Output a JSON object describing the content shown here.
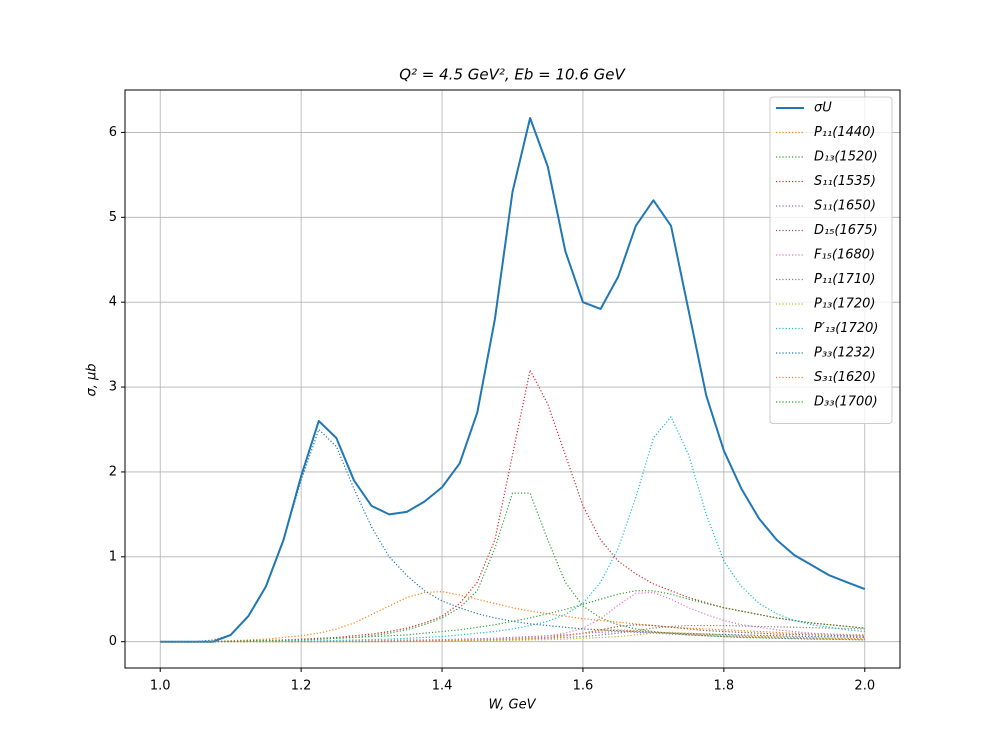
{
  "chart_data": {
    "type": "line",
    "title": "Q² = 4.5 GeV²,  Eb = 10.6 GeV",
    "xlabel": "W, GeV",
    "ylabel": "σ, μb",
    "xlim": [
      0.95,
      2.05
    ],
    "ylim": [
      -0.31,
      6.5
    ],
    "xticks": [
      {
        "value": 1,
        "label": "1.0"
      },
      1.2,
      1.4,
      1.6,
      1.8,
      {
        "value": 2,
        "label": "2.0"
      }
    ],
    "yticks": [
      0,
      1,
      2,
      3,
      4,
      5,
      6
    ],
    "grid": true,
    "legend": "upper right",
    "x": [
      1.0,
      1.025,
      1.05,
      1.075,
      1.1,
      1.125,
      1.15,
      1.175,
      1.2,
      1.225,
      1.25,
      1.275,
      1.3,
      1.325,
      1.35,
      1.375,
      1.4,
      1.425,
      1.45,
      1.475,
      1.5,
      1.525,
      1.55,
      1.575,
      1.6,
      1.625,
      1.65,
      1.675,
      1.7,
      1.725,
      1.75,
      1.775,
      1.8,
      1.825,
      1.85,
      1.875,
      1.9,
      1.925,
      1.95,
      1.975,
      2.0
    ],
    "series": [
      {
        "name": "σU",
        "color": "#1f77b4",
        "linestyle": "solid",
        "values": [
          0,
          0,
          0,
          0,
          0.08,
          0.3,
          0.65,
          1.2,
          1.95,
          2.6,
          2.4,
          1.9,
          1.6,
          1.5,
          1.53,
          1.65,
          1.82,
          2.1,
          2.7,
          3.8,
          5.3,
          6.17,
          5.6,
          4.6,
          4.0,
          3.92,
          4.3,
          4.9,
          5.2,
          4.9,
          3.9,
          2.9,
          2.25,
          1.8,
          1.45,
          1.2,
          1.02,
          0.9,
          0.78,
          0.7,
          0.62
        ]
      },
      {
        "name": "P₁₁(1440)",
        "color": "#ff7f0e",
        "linestyle": "dotted",
        "values": [
          0,
          0,
          0,
          0.005,
          0.01,
          0.02,
          0.03,
          0.05,
          0.07,
          0.1,
          0.15,
          0.22,
          0.32,
          0.42,
          0.52,
          0.58,
          0.59,
          0.55,
          0.5,
          0.45,
          0.4,
          0.36,
          0.33,
          0.3,
          0.27,
          0.25,
          0.23,
          0.21,
          0.19,
          0.17,
          0.16,
          0.15,
          0.14,
          0.13,
          0.12,
          0.11,
          0.1,
          0.095,
          0.09,
          0.085,
          0.08
        ]
      },
      {
        "name": "D₁₃(1520)",
        "color": "#2ca02c",
        "linestyle": "dotted",
        "values": [
          0,
          0,
          0,
          0,
          0.005,
          0.01,
          0.01,
          0.015,
          0.02,
          0.03,
          0.04,
          0.05,
          0.07,
          0.1,
          0.14,
          0.2,
          0.28,
          0.4,
          0.6,
          1.1,
          1.75,
          1.75,
          1.2,
          0.7,
          0.42,
          0.28,
          0.2,
          0.15,
          0.12,
          0.1,
          0.08,
          0.07,
          0.06,
          0.05,
          0.045,
          0.04,
          0.035,
          0.03,
          0.03,
          0.025,
          0.02
        ]
      },
      {
        "name": "S₁₁(1535)",
        "color": "#d62728",
        "linestyle": "dotted",
        "values": [
          0,
          0,
          0,
          0,
          0.005,
          0.01,
          0.015,
          0.02,
          0.03,
          0.04,
          0.05,
          0.07,
          0.09,
          0.12,
          0.16,
          0.22,
          0.3,
          0.45,
          0.7,
          1.2,
          2.2,
          3.2,
          2.8,
          2.2,
          1.6,
          1.2,
          0.95,
          0.8,
          0.68,
          0.6,
          0.52,
          0.46,
          0.4,
          0.36,
          0.32,
          0.28,
          0.25,
          0.22,
          0.2,
          0.18,
          0.16
        ]
      },
      {
        "name": "S₁₁(1650)",
        "color": "#9467bd",
        "linestyle": "dotted",
        "values": [
          0,
          0,
          0,
          0,
          0,
          0,
          0,
          0,
          0,
          0.005,
          0.005,
          0.01,
          0.01,
          0.015,
          0.02,
          0.02,
          0.025,
          0.03,
          0.035,
          0.04,
          0.05,
          0.06,
          0.07,
          0.08,
          0.1,
          0.11,
          0.12,
          0.11,
          0.1,
          0.09,
          0.08,
          0.07,
          0.06,
          0.055,
          0.05,
          0.045,
          0.04,
          0.035,
          0.03,
          0.03,
          0.025
        ]
      },
      {
        "name": "D₁₅(1675)",
        "color": "#8c564b",
        "linestyle": "dotted",
        "values": [
          0,
          0,
          0,
          0,
          0,
          0,
          0,
          0,
          0,
          0,
          0,
          0,
          0,
          0.005,
          0.005,
          0.01,
          0.01,
          0.015,
          0.02,
          0.025,
          0.03,
          0.04,
          0.05,
          0.07,
          0.1,
          0.14,
          0.18,
          0.2,
          0.19,
          0.17,
          0.15,
          0.13,
          0.12,
          0.11,
          0.1,
          0.09,
          0.085,
          0.08,
          0.075,
          0.07,
          0.065
        ]
      },
      {
        "name": "F₁₅(1680)",
        "color": "#e377c2",
        "linestyle": "dotted",
        "values": [
          0,
          0,
          0,
          0,
          0,
          0,
          0,
          0,
          0,
          0,
          0,
          0,
          0.005,
          0.005,
          0.01,
          0.01,
          0.015,
          0.02,
          0.025,
          0.03,
          0.04,
          0.05,
          0.07,
          0.1,
          0.16,
          0.27,
          0.43,
          0.57,
          0.58,
          0.5,
          0.4,
          0.32,
          0.25,
          0.2,
          0.17,
          0.14,
          0.12,
          0.1,
          0.09,
          0.08,
          0.07
        ]
      },
      {
        "name": "P₁₁(1710)",
        "color": "#7f7f7f",
        "linestyle": "dotted",
        "values": [
          0,
          0,
          0,
          0,
          0,
          0,
          0,
          0,
          0,
          0,
          0,
          0,
          0,
          0,
          0.005,
          0.005,
          0.01,
          0.01,
          0.015,
          0.02,
          0.025,
          0.03,
          0.04,
          0.05,
          0.06,
          0.08,
          0.1,
          0.13,
          0.16,
          0.18,
          0.19,
          0.19,
          0.19,
          0.185,
          0.18,
          0.175,
          0.17,
          0.165,
          0.16,
          0.155,
          0.15
        ]
      },
      {
        "name": "P₁₃(1720)",
        "color": "#bcbd22",
        "linestyle": "dotted",
        "values": [
          0,
          0,
          0,
          0,
          0,
          0,
          0,
          0,
          0,
          0,
          0,
          0,
          0,
          0,
          0,
          0,
          0.005,
          0.005,
          0.01,
          0.01,
          0.015,
          0.02,
          0.025,
          0.03,
          0.04,
          0.05,
          0.06,
          0.08,
          0.1,
          0.11,
          0.1,
          0.09,
          0.08,
          0.07,
          0.06,
          0.055,
          0.05,
          0.045,
          0.04,
          0.035,
          0.03
        ]
      },
      {
        "name": "P′₁₃(1720)",
        "color": "#17becf",
        "linestyle": "dotted",
        "values": [
          0,
          0,
          0,
          0,
          0,
          0,
          0,
          0.005,
          0.01,
          0.01,
          0.015,
          0.02,
          0.025,
          0.03,
          0.04,
          0.05,
          0.06,
          0.08,
          0.1,
          0.12,
          0.15,
          0.19,
          0.24,
          0.32,
          0.45,
          0.7,
          1.1,
          1.7,
          2.4,
          2.65,
          2.2,
          1.5,
          0.95,
          0.65,
          0.45,
          0.33,
          0.25,
          0.2,
          0.17,
          0.14,
          0.12
        ]
      },
      {
        "name": "P₃₃(1232)",
        "color": "#1f77b4",
        "linestyle": "dotted",
        "values": [
          0,
          0,
          0,
          0.02,
          0.08,
          0.3,
          0.65,
          1.2,
          1.9,
          2.5,
          2.3,
          1.8,
          1.35,
          1.0,
          0.78,
          0.6,
          0.48,
          0.4,
          0.33,
          0.28,
          0.24,
          0.21,
          0.19,
          0.17,
          0.15,
          0.14,
          0.13,
          0.12,
          0.11,
          0.1,
          0.095,
          0.09,
          0.085,
          0.08,
          0.075,
          0.07,
          0.065,
          0.06,
          0.058,
          0.055,
          0.05
        ]
      },
      {
        "name": "S₃₁(1620)",
        "color": "#ff7f0e",
        "linestyle": "dotted",
        "values": [
          0,
          0,
          0,
          0,
          0,
          0,
          0,
          0,
          0,
          0,
          0,
          0,
          0.005,
          0.005,
          0.005,
          0.01,
          0.01,
          0.015,
          0.02,
          0.025,
          0.03,
          0.04,
          0.05,
          0.07,
          0.1,
          0.13,
          0.14,
          0.13,
          0.11,
          0.1,
          0.09,
          0.08,
          0.07,
          0.065,
          0.06,
          0.055,
          0.05,
          0.045,
          0.04,
          0.04,
          0.035
        ]
      },
      {
        "name": "D₃₃(1700)",
        "color": "#2ca02c",
        "linestyle": "dotted",
        "values": [
          0,
          0,
          0,
          0,
          0.005,
          0.01,
          0.015,
          0.02,
          0.025,
          0.03,
          0.04,
          0.05,
          0.06,
          0.07,
          0.08,
          0.1,
          0.12,
          0.14,
          0.17,
          0.2,
          0.24,
          0.28,
          0.33,
          0.38,
          0.44,
          0.5,
          0.56,
          0.6,
          0.6,
          0.56,
          0.5,
          0.45,
          0.4,
          0.36,
          0.32,
          0.28,
          0.25,
          0.22,
          0.2,
          0.18,
          0.16
        ]
      }
    ]
  }
}
